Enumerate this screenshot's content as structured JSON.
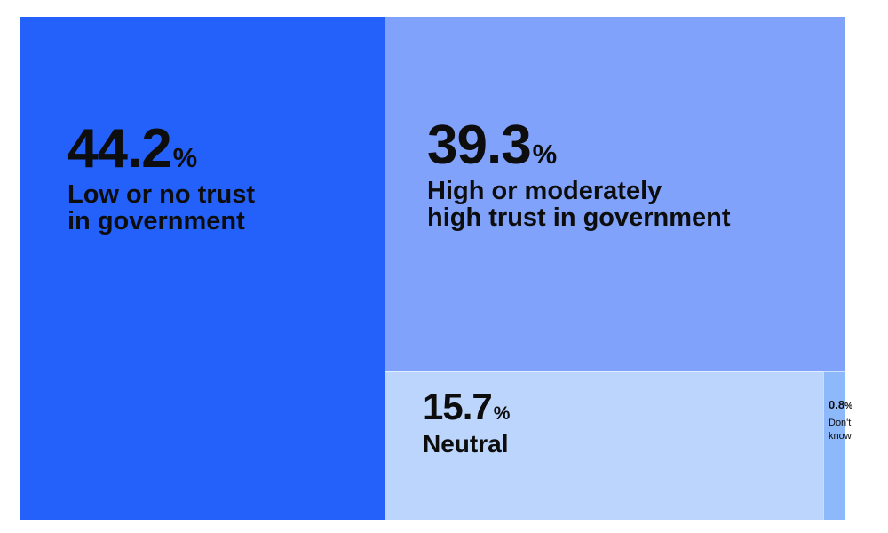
{
  "chart_data": {
    "type": "treemap",
    "unit": "%",
    "items": [
      {
        "value": 44.2,
        "label": "Low or no trust\nin government",
        "color": "#2460fa"
      },
      {
        "value": 39.3,
        "label": "High or moderately\nhigh trust in government",
        "color": "#80a2fa"
      },
      {
        "value": 15.7,
        "label": "Neutral",
        "color": "#bcd5fc"
      },
      {
        "value": 0.8,
        "label": "Don't\nknow",
        "color": "#8db8fa"
      }
    ]
  }
}
